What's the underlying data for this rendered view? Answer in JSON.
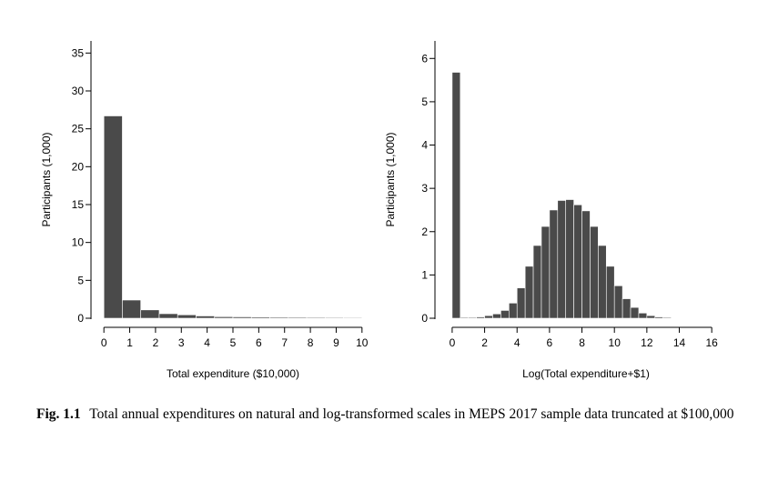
{
  "chart_data": [
    {
      "type": "bar",
      "xlabel": "Total expenditure ($10,000)",
      "ylabel": "Participants (1,000)",
      "x_ticks": [
        0,
        1,
        2,
        3,
        4,
        5,
        6,
        7,
        8,
        9,
        10
      ],
      "y_ticks": [
        0,
        5,
        10,
        15,
        20,
        25,
        30,
        35
      ],
      "xlim": [
        -0.5,
        10.5
      ],
      "ylim": [
        0,
        36
      ],
      "bin_width": 0.714,
      "bin_starts": [
        0,
        0.714,
        1.429,
        2.143,
        2.857,
        3.571,
        4.286,
        5.0,
        5.714,
        6.429,
        7.143,
        7.857,
        8.571,
        9.286
      ],
      "values": [
        26.7,
        2.4,
        1.1,
        0.6,
        0.45,
        0.3,
        0.2,
        0.18,
        0.15,
        0.13,
        0.12,
        0.11,
        0.1,
        0.09
      ],
      "bar_color": "#4a4a4a"
    },
    {
      "type": "bar",
      "xlabel": "Log(Total expenditure+$1)",
      "ylabel": "Participants (1,000)",
      "x_ticks": [
        0,
        2,
        4,
        6,
        8,
        10,
        12,
        14,
        16
      ],
      "y_ticks": [
        0,
        1,
        2,
        3,
        4,
        5,
        6
      ],
      "xlim": [
        -0.5,
        17
      ],
      "ylim": [
        0,
        6.3
      ],
      "bin_width": 0.5,
      "bin_starts": [
        0,
        0.5,
        1.0,
        1.5,
        2.0,
        2.5,
        3.0,
        3.5,
        4.0,
        4.5,
        5.0,
        5.5,
        6.0,
        6.5,
        7.0,
        7.5,
        8.0,
        8.5,
        9.0,
        9.5,
        10.0,
        10.5,
        11.0,
        11.5,
        12.0,
        12.5,
        13.0
      ],
      "values": [
        5.68,
        0.02,
        0.02,
        0.03,
        0.06,
        0.1,
        0.18,
        0.35,
        0.7,
        1.2,
        1.68,
        2.12,
        2.5,
        2.72,
        2.74,
        2.62,
        2.48,
        2.12,
        1.68,
        1.2,
        0.75,
        0.45,
        0.25,
        0.12,
        0.06,
        0.03,
        0.02
      ],
      "bar_color": "#4a4a4a"
    }
  ],
  "caption": {
    "label": "Fig. 1.1",
    "text": "Total annual expenditures on natural and log-transformed scales in MEPS 2017 sample data truncated at $100,000"
  }
}
